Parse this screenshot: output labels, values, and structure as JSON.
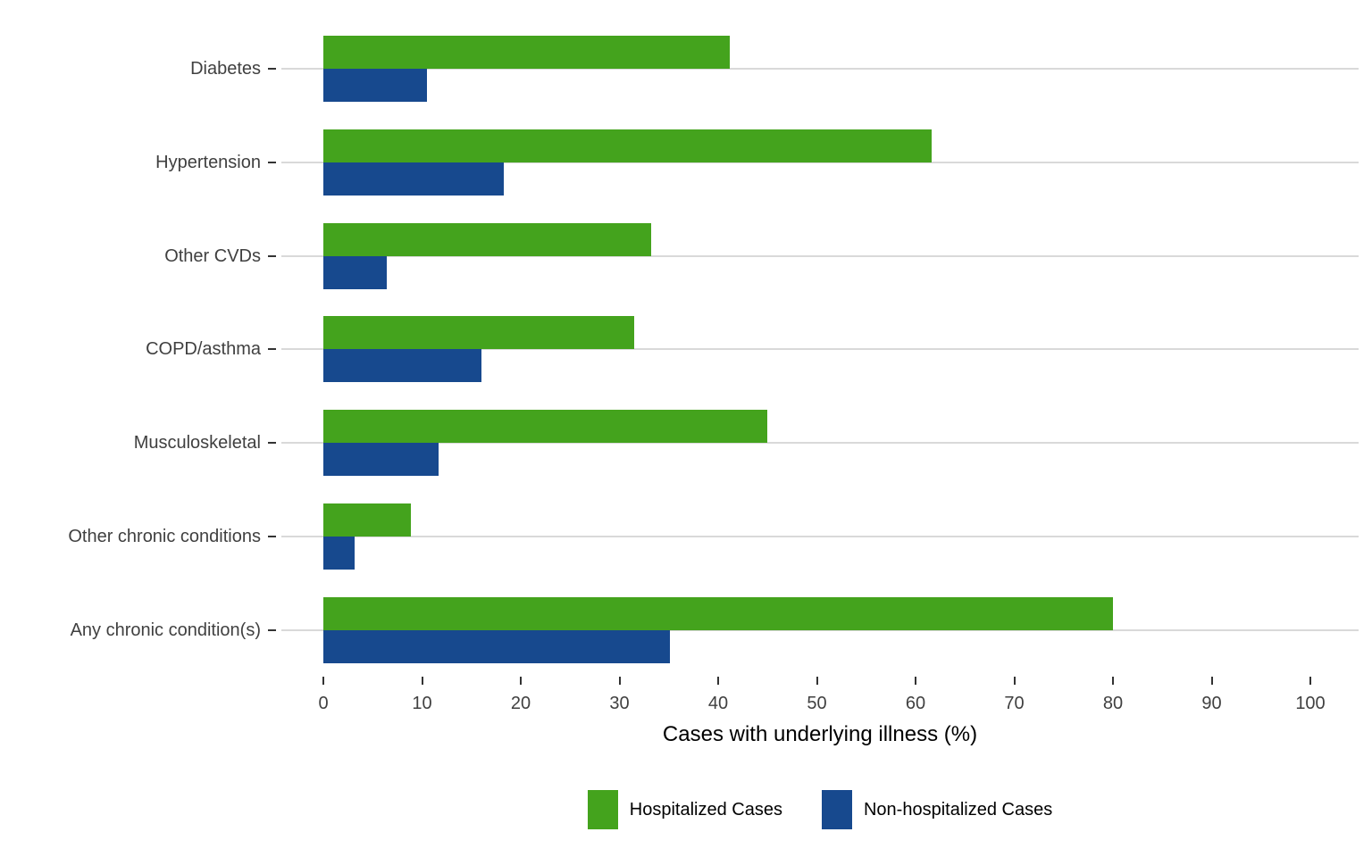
{
  "chart_data": {
    "type": "bar",
    "orientation": "horizontal",
    "title": "",
    "xlabel": "Cases with underlying illness (%)",
    "ylabel": "",
    "xlim": [
      0,
      100
    ],
    "xticks": [
      0,
      10,
      20,
      30,
      40,
      50,
      60,
      70,
      80,
      90,
      100
    ],
    "grid": "horizontal gray line at each category",
    "legend_position": "bottom",
    "categories": [
      "Diabetes",
      "Hypertension",
      "Other CVDs",
      "COPD/asthma",
      "Musculoskeletal",
      "Other chronic conditions",
      "Any chronic condition(s)"
    ],
    "series": [
      {
        "name": "Hospitalized Cases",
        "color": "#44a31d",
        "values": [
          41.2,
          61.6,
          33.2,
          31.5,
          45.0,
          8.9,
          80.0
        ]
      },
      {
        "name": "Non-hospitalized Cases",
        "color": "#17498e",
        "values": [
          10.5,
          18.3,
          6.4,
          16.0,
          11.7,
          3.2,
          35.1
        ]
      }
    ]
  },
  "colors": {
    "gridline": "#d9d9d9",
    "tick": "#333333",
    "axis_text": "#404040",
    "title_text": "#000000"
  }
}
